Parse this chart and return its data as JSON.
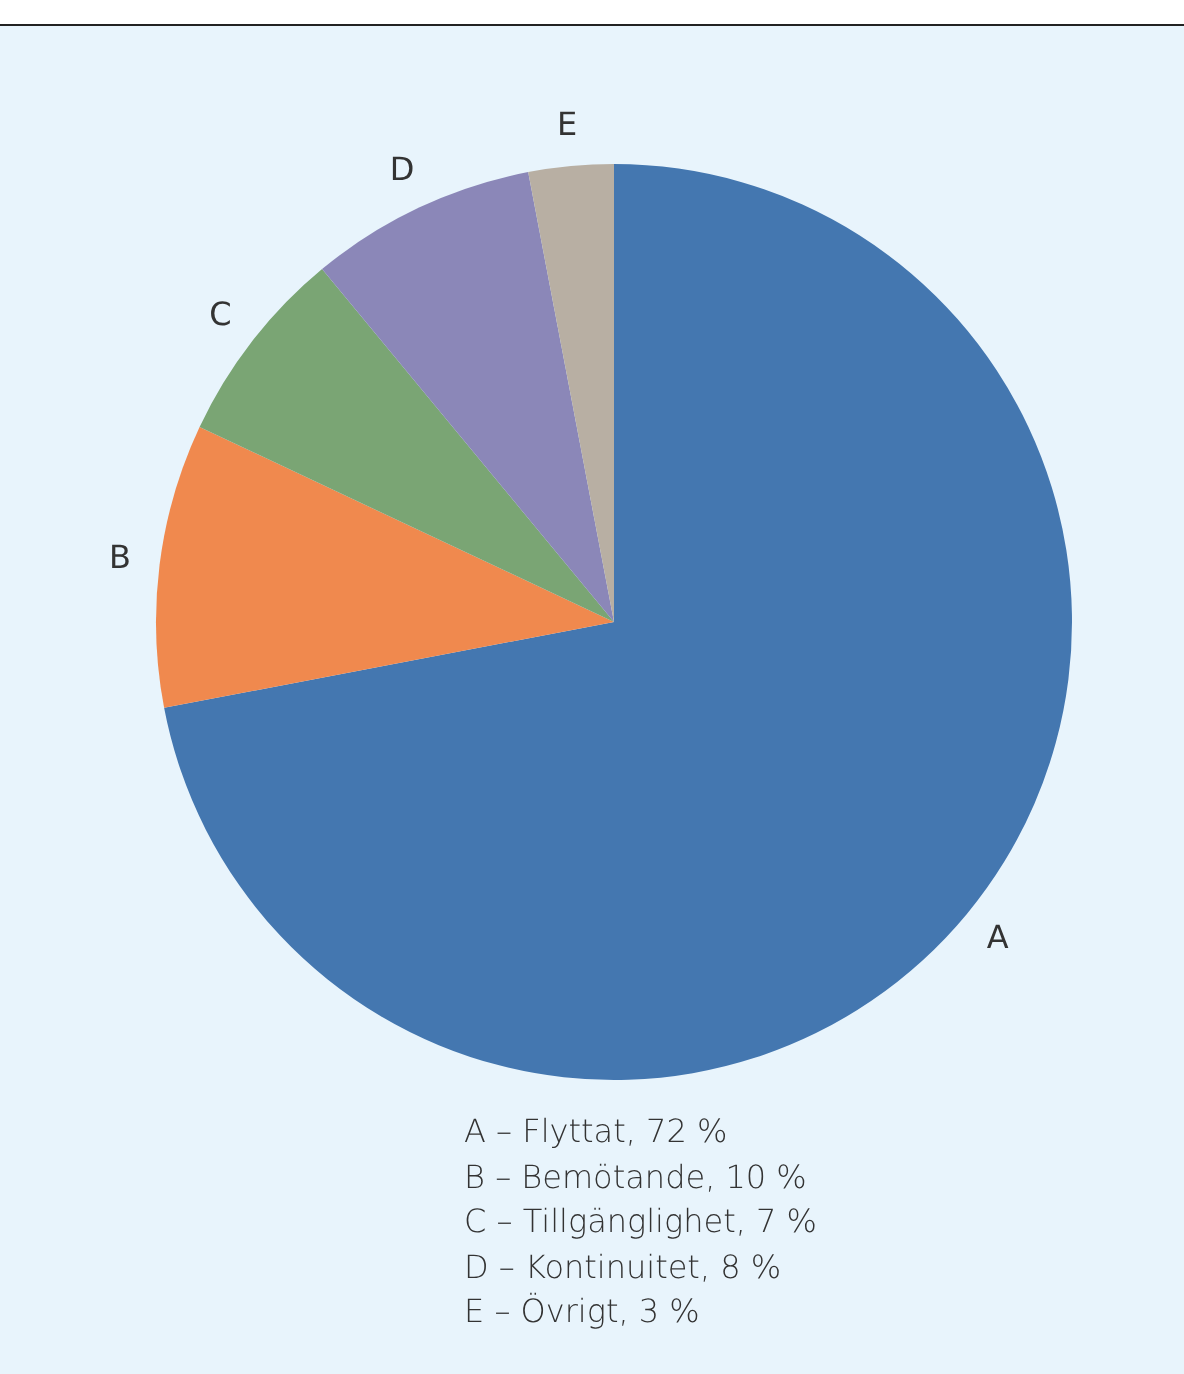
{
  "chart_data": {
    "type": "pie",
    "categories": [
      "A",
      "B",
      "C",
      "D",
      "E"
    ],
    "values": [
      72,
      10,
      7,
      8,
      3
    ],
    "colors": [
      "#4477b0",
      "#f0894e",
      "#7aa574",
      "#8b87b8",
      "#b8afa3"
    ],
    "legend": false,
    "annotations": [
      "A – Flyttat, 72 %",
      "B – Bemötande, 10 %",
      "C – Tillgänglighet, 7 %",
      "D – Kontinuitet, 8 %",
      "E – Övrigt, 3 %"
    ]
  }
}
